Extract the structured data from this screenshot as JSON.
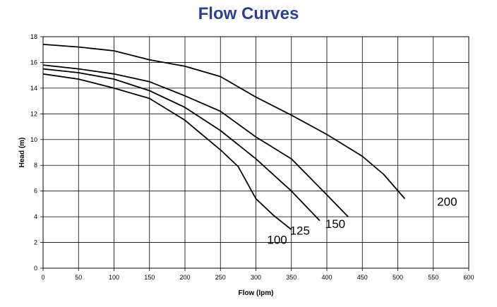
{
  "chart_data": {
    "type": "line",
    "title": "Flow Curves",
    "xlabel": "Flow (lpm)",
    "ylabel": "Head (m)",
    "xlim": [
      0,
      600
    ],
    "ylim": [
      0,
      18
    ],
    "xticks": [
      0,
      50,
      100,
      150,
      200,
      250,
      300,
      350,
      400,
      450,
      500,
      550,
      600
    ],
    "yticks": [
      0,
      2,
      4,
      6,
      8,
      10,
      12,
      14,
      16,
      18
    ],
    "grid": true,
    "series": [
      {
        "name": "100",
        "x": [
          0,
          50,
          100,
          150,
          200,
          250,
          275,
          300,
          325,
          350
        ],
        "y": [
          15.1,
          14.7,
          14.0,
          13.2,
          11.5,
          9.2,
          7.9,
          5.4,
          4.1,
          3.0
        ]
      },
      {
        "name": "125",
        "x": [
          0,
          50,
          100,
          150,
          200,
          250,
          300,
          350,
          390
        ],
        "y": [
          15.5,
          15.2,
          14.7,
          13.8,
          12.5,
          10.7,
          8.5,
          6.0,
          3.7
        ]
      },
      {
        "name": "150",
        "x": [
          0,
          50,
          100,
          150,
          200,
          250,
          300,
          350,
          400,
          430
        ],
        "y": [
          15.8,
          15.5,
          15.1,
          14.5,
          13.4,
          12.2,
          10.2,
          8.5,
          5.7,
          4.0
        ]
      },
      {
        "name": "200",
        "x": [
          0,
          50,
          100,
          150,
          200,
          250,
          300,
          350,
          400,
          450,
          480,
          510
        ],
        "y": [
          17.4,
          17.2,
          16.9,
          16.2,
          15.7,
          14.9,
          13.3,
          11.9,
          10.4,
          8.7,
          7.3,
          5.4
        ]
      }
    ]
  }
}
